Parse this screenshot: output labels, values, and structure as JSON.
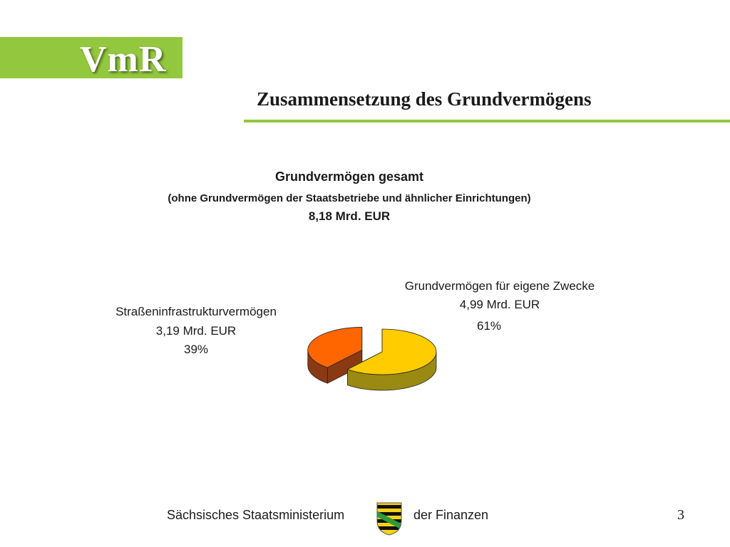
{
  "logo": {
    "text": "VmR"
  },
  "slide_title": "Zusammensetzung des Grundvermögens",
  "chart_data": {
    "type": "pie",
    "title": "Grundvermögen gesamt",
    "subtitle": "(ohne Grundvermögen der Staatsbetriebe und ähnlicher Einrichtungen)",
    "total": "8,18 Mrd. EUR",
    "exploded": true,
    "three_d": true,
    "slices": [
      {
        "name": "Grundvermögen für eigene Zwecke",
        "value": 4.99,
        "value_label": "4,99 Mrd. EUR",
        "percent": 61,
        "percent_label": "61%",
        "color": "#ffcc00",
        "side_color": "#9a8a12"
      },
      {
        "name": "Straßeninfrastrukturvermögen",
        "value": 3.19,
        "value_label": "3,19 Mrd. EUR",
        "percent": 39,
        "percent_label": "39%",
        "color": "#ff6600",
        "side_color": "#8a3a12"
      }
    ]
  },
  "footer": {
    "left": "Sächsisches Staatsministerium",
    "right": "der Finanzen",
    "page_number": "3"
  },
  "colors": {
    "accent_green": "#93c83e",
    "coat_green": "#2e9a3a",
    "coat_yellow": "#f7d117"
  }
}
